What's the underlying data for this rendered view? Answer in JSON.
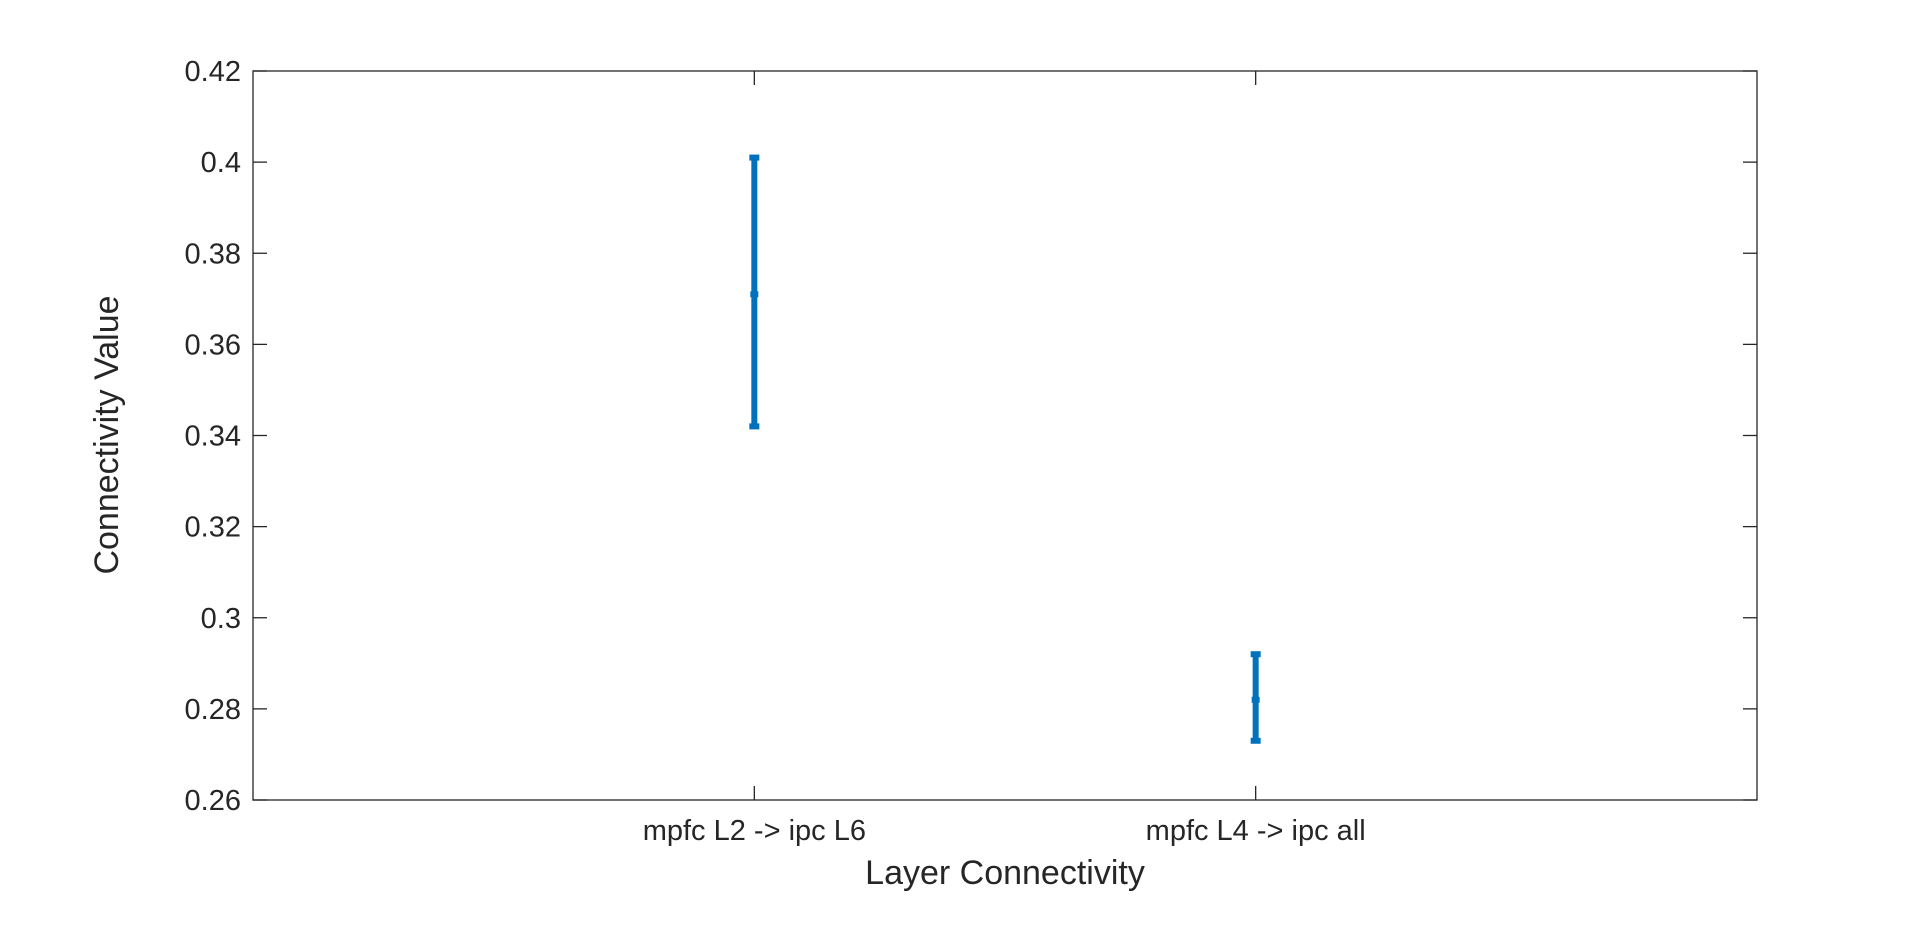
{
  "chart_data": {
    "type": "errorbar",
    "xlabel": "Layer Connectivity",
    "ylabel": "Connectivity Value",
    "categories": [
      "mpfc L2 -> ipc L6",
      "mpfc L4 -> ipc all"
    ],
    "series": [
      {
        "mean": [
          0.371,
          0.282
        ],
        "lower": [
          0.342,
          0.273
        ],
        "upper": [
          0.401,
          0.292
        ]
      }
    ],
    "xlim": [
      0.5,
      3.5
    ],
    "x_positions": [
      1.5,
      2.5
    ],
    "ylim": [
      0.26,
      0.42
    ],
    "yticks": [
      0.26,
      0.28,
      0.3,
      0.32,
      0.34,
      0.36,
      0.38,
      0.4,
      0.42
    ],
    "ytick_labels": [
      "0.26",
      "0.28",
      "0.3",
      "0.32",
      "0.34",
      "0.36",
      "0.38",
      "0.4",
      "0.42"
    ],
    "grid": false,
    "colors": {
      "series": "#0072BD",
      "axis": "#262626"
    }
  }
}
